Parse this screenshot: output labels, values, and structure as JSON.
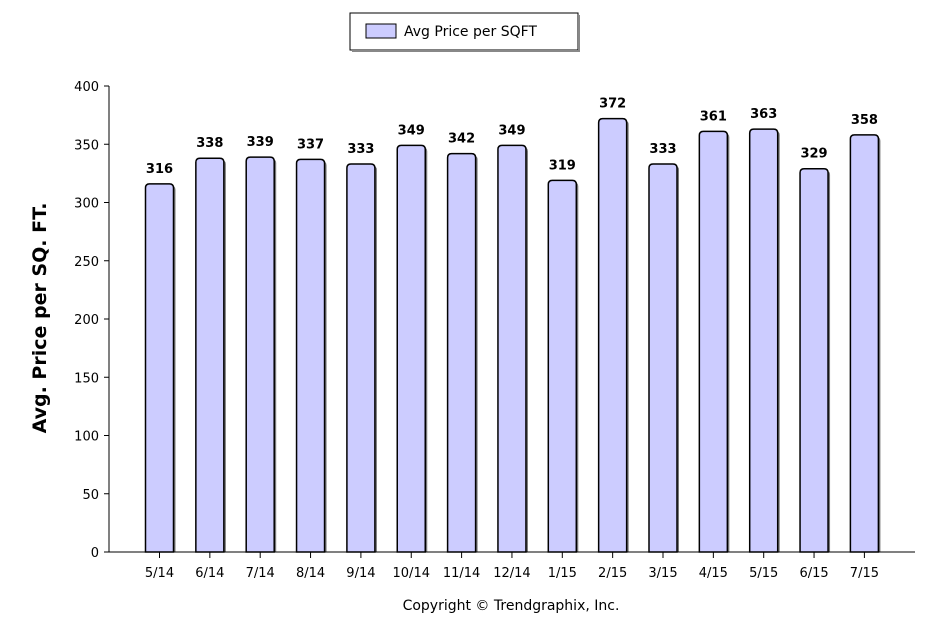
{
  "chart_data": {
    "type": "bar",
    "categories": [
      "5/14",
      "6/14",
      "7/14",
      "8/14",
      "9/14",
      "10/14",
      "11/14",
      "12/14",
      "1/15",
      "2/15",
      "3/15",
      "4/15",
      "5/15",
      "6/15",
      "7/15"
    ],
    "series": [
      {
        "name": "Avg Price per SQFT",
        "values": [
          316,
          338,
          339,
          337,
          333,
          349,
          342,
          349,
          319,
          372,
          333,
          361,
          363,
          329,
          358
        ]
      }
    ],
    "data_labels": [
      "316",
      "338",
      "339",
      "337",
      "333",
      "349",
      "342",
      "349",
      "319",
      "372",
      "333",
      "361",
      "363",
      "329",
      "358"
    ],
    "ylabel": "Avg. Price per SQ. FT.",
    "xlabel": "",
    "ylim": [
      0,
      400
    ],
    "yticks": [
      "0",
      "50",
      "100",
      "150",
      "200",
      "250",
      "300",
      "350",
      "400"
    ],
    "legend_position": "top-center",
    "grid": false,
    "bar_color": "#ccccff",
    "bar_stroke": "#000000"
  },
  "footer": {
    "copyright": "Copyright © Trendgraphix, Inc."
  }
}
